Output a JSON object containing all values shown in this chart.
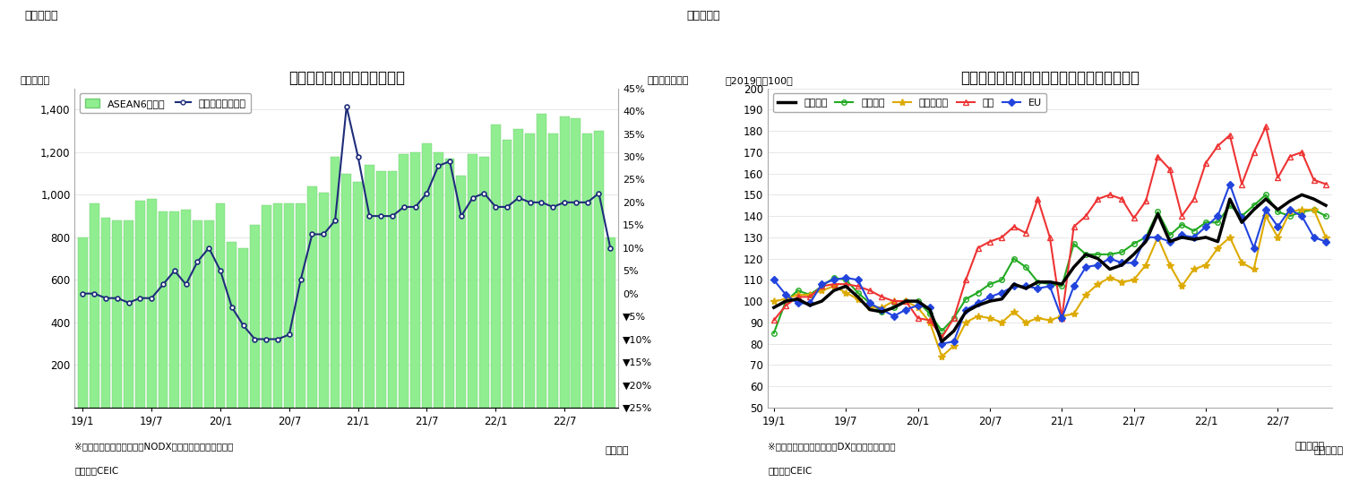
{
  "chart1": {
    "title": "アセアン主要６カ国の輸出額",
    "ylabel_left": "（億ドル）",
    "ylabel_right": "（前年同月比）",
    "xlabel": "（年月）",
    "header": "（図表１）",
    "legend_bar": "ASEAN6カ国計",
    "legend_line": "増加率（右目盛）",
    "footnote1": "※シンガポールの輸出額はNODX（石油と再輸出除く）。",
    "footnote2": "（資料）CEIC",
    "bar_color": "#90EE90",
    "line_color": "#1f2d7b",
    "ylim_left": [
      0,
      1500
    ],
    "ylim_right": [
      -0.25,
      0.45
    ],
    "yticks_left": [
      0,
      200,
      400,
      600,
      800,
      1000,
      1200,
      1400
    ],
    "yticks_right_vals": [
      0.45,
      0.4,
      0.35,
      0.3,
      0.25,
      0.2,
      0.15,
      0.1,
      0.05,
      0.0,
      -0.05,
      -0.1,
      -0.15,
      -0.2,
      -0.25
    ],
    "yticks_right_labels": [
      "45%",
      "40%",
      "35%",
      "30%",
      "25%",
      "20%",
      "15%",
      "10%",
      "5%",
      "0%",
      "▼5%",
      "▼10%",
      "▼15%",
      "▼20%",
      "▼25%"
    ],
    "x_labels": [
      "19/1",
      "19/7",
      "20/1",
      "20/7",
      "21/1",
      "21/7",
      "22/1",
      "22/7"
    ],
    "xtick_pos": [
      0,
      6,
      12,
      18,
      24,
      30,
      36,
      42
    ],
    "bar_values": [
      800,
      960,
      890,
      880,
      880,
      970,
      980,
      920,
      920,
      930,
      880,
      880,
      960,
      780,
      750,
      860,
      950,
      960,
      960,
      960,
      1040,
      1010,
      1180,
      1100,
      1060,
      1140,
      1110,
      1110,
      1190,
      1200,
      1240,
      1200,
      1170,
      1090,
      1190,
      1180,
      1330,
      1260,
      1310,
      1290,
      1380,
      1290,
      1370,
      1360,
      1290,
      1300,
      800
    ],
    "line_values": [
      0.0,
      0.0,
      -0.01,
      -0.01,
      -0.02,
      -0.01,
      -0.01,
      0.02,
      0.05,
      0.02,
      0.07,
      0.1,
      0.05,
      -0.03,
      -0.07,
      -0.1,
      -0.1,
      -0.1,
      -0.09,
      0.03,
      0.13,
      0.13,
      0.16,
      0.41,
      0.3,
      0.17,
      0.17,
      0.17,
      0.19,
      0.19,
      0.22,
      0.28,
      0.29,
      0.17,
      0.21,
      0.22,
      0.19,
      0.19,
      0.21,
      0.2,
      0.2,
      0.19,
      0.2,
      0.2,
      0.2,
      0.22,
      0.1
    ],
    "n_bars": 47
  },
  "chart2": {
    "title": "アセアン主要６カ国　仕向け地別の輸出動向",
    "ylabel_left": "（2019年＝100）",
    "xlabel": "（年／月）",
    "header": "（図表２）",
    "footnote1": "※シンガポールの輸出額はDX（再輸出除く）。",
    "footnote2": "（資料）CEIC",
    "ylim": [
      50,
      200
    ],
    "yticks": [
      50,
      60,
      70,
      80,
      90,
      100,
      110,
      120,
      130,
      140,
      150,
      160,
      170,
      180,
      190,
      200
    ],
    "x_labels": [
      "19/1",
      "19/7",
      "20/1",
      "20/7",
      "21/1",
      "21/7",
      "22/1",
      "22/7"
    ],
    "xtick_pos": [
      0,
      6,
      12,
      18,
      24,
      30,
      36,
      42
    ],
    "series_names": [
      "輸出全体",
      "東アジア",
      "東南アジア",
      "北米",
      "EU"
    ],
    "series_colors": [
      "#000000",
      "#22aa22",
      "#ddaa00",
      "#ee3333",
      "#2244dd"
    ],
    "series_linewidths": [
      2.5,
      1.5,
      1.5,
      1.5,
      1.5
    ],
    "series_markers": [
      "none",
      "o",
      "*",
      "^",
      "D"
    ],
    "series_markersizes": [
      0,
      4,
      6,
      4,
      4
    ],
    "series_markerfacecolors": [
      "none",
      "none",
      "#ddaa00",
      "none",
      "#2244dd"
    ],
    "series_values": [
      [
        97,
        100,
        101,
        98,
        100,
        105,
        107,
        102,
        96,
        95,
        97,
        100,
        100,
        96,
        81,
        86,
        95,
        98,
        100,
        101,
        108,
        106,
        109,
        109,
        108,
        116,
        122,
        120,
        115,
        117,
        122,
        128,
        141,
        128,
        130,
        129,
        130,
        128,
        148,
        137,
        143,
        148,
        143,
        147,
        150,
        148,
        145
      ],
      [
        85,
        100,
        105,
        103,
        107,
        111,
        110,
        104,
        99,
        95,
        97,
        100,
        100,
        94,
        86,
        92,
        101,
        104,
        108,
        110,
        120,
        116,
        109,
        108,
        107,
        127,
        122,
        122,
        122,
        123,
        127,
        130,
        142,
        131,
        136,
        133,
        137,
        137,
        145,
        140,
        145,
        150,
        142,
        140,
        142,
        143,
        140
      ],
      [
        100,
        101,
        103,
        103,
        105,
        107,
        104,
        101,
        97,
        97,
        100,
        100,
        97,
        90,
        74,
        79,
        90,
        93,
        92,
        90,
        95,
        90,
        92,
        91,
        93,
        94,
        103,
        108,
        111,
        109,
        110,
        117,
        130,
        117,
        107,
        115,
        117,
        125,
        130,
        118,
        115,
        140,
        130,
        142,
        143,
        143,
        130
      ],
      [
        91,
        98,
        102,
        102,
        107,
        108,
        108,
        107,
        105,
        102,
        100,
        100,
        92,
        91,
        83,
        92,
        110,
        125,
        128,
        130,
        135,
        132,
        148,
        130,
        92,
        135,
        140,
        148,
        150,
        148,
        139,
        147,
        168,
        162,
        140,
        148,
        165,
        173,
        178,
        155,
        170,
        182,
        158,
        168,
        170,
        157,
        155
      ],
      [
        110,
        103,
        99,
        99,
        108,
        110,
        111,
        110,
        99,
        96,
        93,
        96,
        98,
        97,
        80,
        81,
        96,
        99,
        102,
        104,
        107,
        107,
        106,
        107,
        92,
        107,
        116,
        117,
        120,
        118,
        118,
        130,
        130,
        128,
        131,
        130,
        135,
        140,
        155,
        139,
        125,
        143,
        135,
        143,
        140,
        130,
        128
      ]
    ]
  }
}
